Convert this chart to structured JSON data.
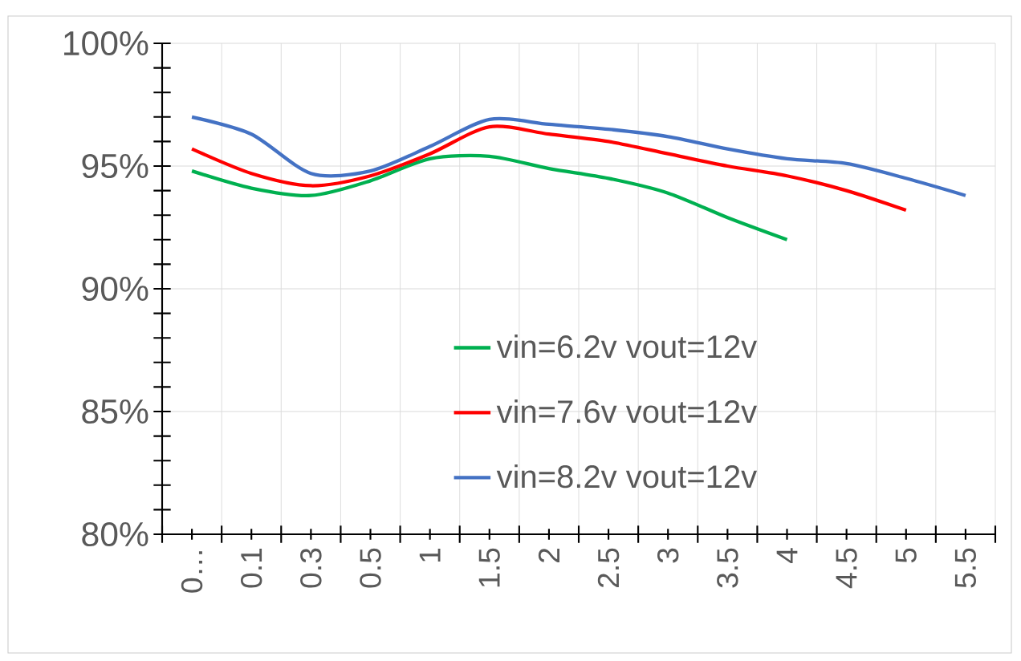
{
  "chart_data": {
    "type": "line",
    "categories": [
      "0…",
      "0.1",
      "0.3",
      "0.5",
      "1",
      "1.5",
      "2",
      "2.5",
      "3",
      "3.5",
      "4",
      "4.5",
      "5",
      "5.5"
    ],
    "series": [
      {
        "name": "vin=6.2v vout=12v",
        "color": "#00b050",
        "values": [
          94.8,
          94.1,
          93.8,
          94.4,
          95.3,
          95.4,
          94.9,
          94.5,
          93.9,
          92.9,
          92.0,
          null,
          null,
          null
        ]
      },
      {
        "name": "vin=7.6v vout=12v",
        "color": "#ff0000",
        "values": [
          95.7,
          94.7,
          94.2,
          94.6,
          95.5,
          96.6,
          96.3,
          96.0,
          95.5,
          95.0,
          94.6,
          94.0,
          93.2,
          null
        ]
      },
      {
        "name": "vin=8.2v vout=12v",
        "color": "#4472c4",
        "values": [
          97.0,
          96.3,
          94.7,
          94.8,
          95.8,
          96.9,
          96.7,
          96.5,
          96.2,
          95.7,
          95.3,
          95.1,
          94.5,
          93.8
        ]
      }
    ],
    "ylim": [
      80,
      100
    ],
    "yticks": [
      {
        "value": 80,
        "label": "80%"
      },
      {
        "value": 85,
        "label": "85%"
      },
      {
        "value": 90,
        "label": "90%"
      },
      {
        "value": 95,
        "label": "95%"
      },
      {
        "value": 100,
        "label": "100%"
      }
    ],
    "grid": true,
    "legend": "bottom right",
    "marker": "none",
    "line_style": "solid"
  }
}
